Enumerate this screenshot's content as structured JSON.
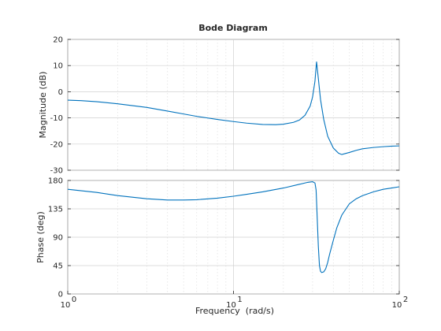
{
  "chart_data": {
    "type": "line",
    "title": "Bode Diagram",
    "xlabel": "Frequency  (rad/s)",
    "xscale": "log",
    "xlim": [
      1,
      100
    ],
    "x_ticks": [
      {
        "value": 1,
        "base": "10",
        "exp": "0"
      },
      {
        "value": 10,
        "base": "10",
        "exp": "1"
      },
      {
        "value": 100,
        "base": "10",
        "exp": "2"
      }
    ],
    "grid": true,
    "color": "#0072BD",
    "panels": [
      {
        "name": "magnitude",
        "ylabel": "Magnitude (dB)",
        "ylim": [
          -30,
          20
        ],
        "y_ticks": [
          20,
          10,
          0,
          -10,
          -20,
          -30
        ],
        "series": [
          {
            "x": [
              1,
              1.2,
              1.5,
              2,
              3,
              4,
              5,
              6,
              8,
              10,
              12,
              15,
              18,
              20,
              23,
              25,
              27,
              29,
              30,
              31,
              31.7,
              32.5,
              33.5,
              35,
              37,
              40,
              43,
              45,
              50,
              55,
              60,
              70,
              80,
              90,
              100
            ],
            "y": [
              -3.2,
              -3.4,
              -3.8,
              -4.6,
              -6.0,
              -7.4,
              -8.5,
              -9.4,
              -10.6,
              -11.4,
              -12.0,
              -12.5,
              -12.6,
              -12.4,
              -11.7,
              -10.8,
              -9.0,
              -5.5,
              -2.0,
              4.0,
              11.5,
              5.0,
              -3.0,
              -10.5,
              -17.0,
              -21.5,
              -23.5,
              -24.0,
              -23.2,
              -22.4,
              -21.8,
              -21.3,
              -21.0,
              -20.8,
              -20.7
            ]
          }
        ]
      },
      {
        "name": "phase",
        "ylabel": "Phase (deg)",
        "ylim": [
          0,
          180
        ],
        "y_ticks": [
          180,
          135,
          90,
          45,
          0
        ],
        "series": [
          {
            "x": [
              1,
              1.5,
              2,
              3,
              4,
              5,
              6,
              8,
              10,
              12,
              15,
              20,
              25,
              28,
              30,
              31,
              31.5,
              32,
              32.5,
              33,
              33.5,
              34,
              35,
              36,
              37,
              38,
              40,
              42,
              45,
              50,
              55,
              60,
              70,
              80,
              90,
              100
            ],
            "y": [
              166,
              161,
              156,
              151,
              149,
              149,
              149.5,
              152,
              155,
              158,
              162,
              168,
              174,
              177,
              178,
              176,
              165,
              120,
              75,
              45,
              36,
              34,
              35,
              40,
              50,
              63,
              85,
              105,
              125,
              143,
              151,
              156,
              162,
              166,
              168,
              170
            ]
          }
        ]
      }
    ]
  }
}
